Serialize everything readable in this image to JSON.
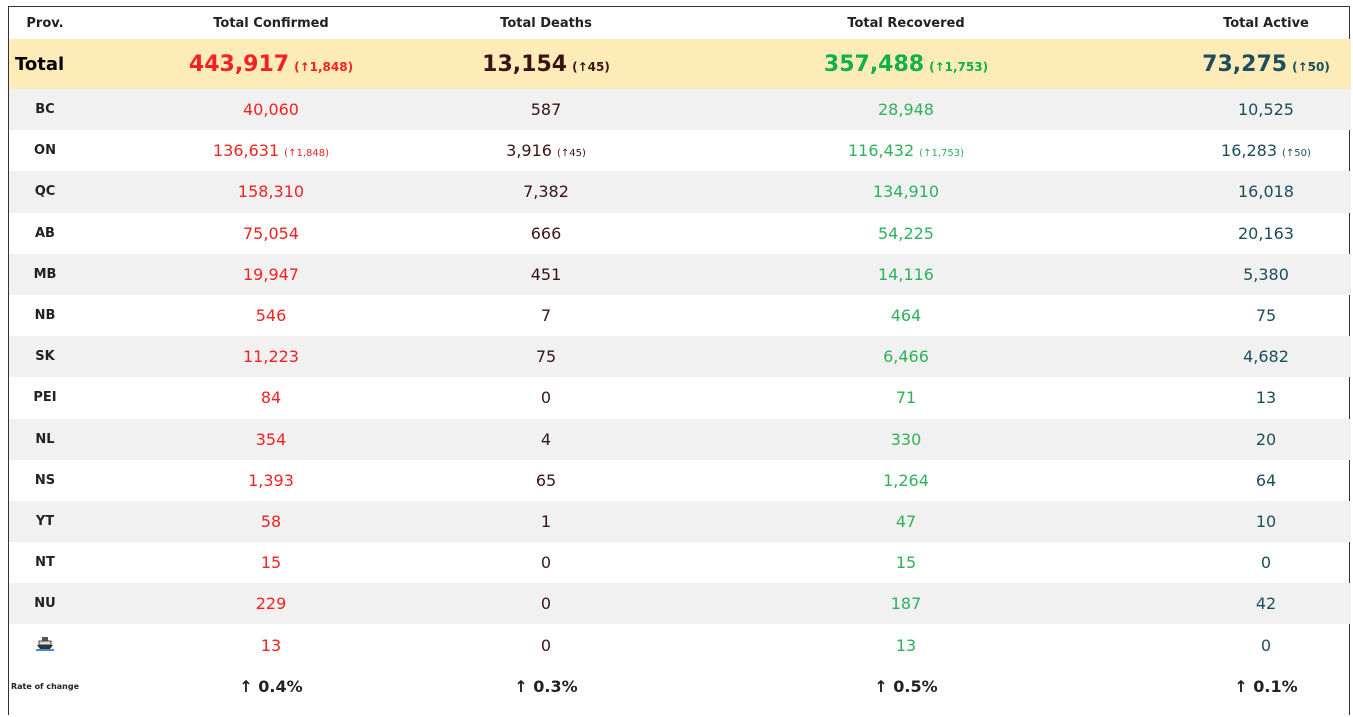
{
  "header": {
    "prov": "Prov.",
    "confirmed": "Total Confirmed",
    "deaths": "Total Deaths",
    "recovered": "Total Recovered",
    "active": "Total Active"
  },
  "total": {
    "prov": "Total",
    "confirmed": "443,917",
    "confirmed_change": "(↑1,848)",
    "deaths": "13,154",
    "deaths_change": "(↑45)",
    "recovered": "357,488",
    "recovered_change": "(↑1,753)",
    "active": "73,275",
    "active_change": "(↑50)"
  },
  "rows": [
    {
      "prov": "BC",
      "confirmed": "40,060",
      "deaths": "587",
      "recovered": "28,948",
      "active": "10,525"
    },
    {
      "prov": "ON",
      "confirmed": "136,631",
      "confirmed_change": "(↑1,848)",
      "deaths": "3,916",
      "deaths_change": "(↑45)",
      "recovered": "116,432",
      "recovered_change": "(↑1,753)",
      "active": "16,283",
      "active_change": "(↑50)"
    },
    {
      "prov": "QC",
      "confirmed": "158,310",
      "deaths": "7,382",
      "recovered": "134,910",
      "active": "16,018"
    },
    {
      "prov": "AB",
      "confirmed": "75,054",
      "deaths": "666",
      "recovered": "54,225",
      "active": "20,163"
    },
    {
      "prov": "MB",
      "confirmed": "19,947",
      "deaths": "451",
      "recovered": "14,116",
      "active": "5,380"
    },
    {
      "prov": "NB",
      "confirmed": "546",
      "deaths": "7",
      "recovered": "464",
      "active": "75"
    },
    {
      "prov": "SK",
      "confirmed": "11,223",
      "deaths": "75",
      "recovered": "6,466",
      "active": "4,682"
    },
    {
      "prov": "PEI",
      "confirmed": "84",
      "deaths": "0",
      "recovered": "71",
      "active": "13"
    },
    {
      "prov": "NL",
      "confirmed": "354",
      "deaths": "4",
      "recovered": "330",
      "active": "20"
    },
    {
      "prov": "NS",
      "confirmed": "1,393",
      "deaths": "65",
      "recovered": "1,264",
      "active": "64"
    },
    {
      "prov": "YT",
      "confirmed": "58",
      "deaths": "1",
      "recovered": "47",
      "active": "10"
    },
    {
      "prov": "NT",
      "confirmed": "15",
      "deaths": "0",
      "recovered": "15",
      "active": "0"
    },
    {
      "prov": "NU",
      "confirmed": "229",
      "deaths": "0",
      "recovered": "187",
      "active": "42"
    },
    {
      "confirmed": "13",
      "deaths": "0",
      "recovered": "13",
      "active": "0"
    }
  ],
  "rate": {
    "prov": "Rate of change",
    "confirmed": "↑ 0.4%",
    "deaths": "↑ 0.3%",
    "recovered": "↑ 0.5%",
    "active": "↑ 0.1%"
  }
}
